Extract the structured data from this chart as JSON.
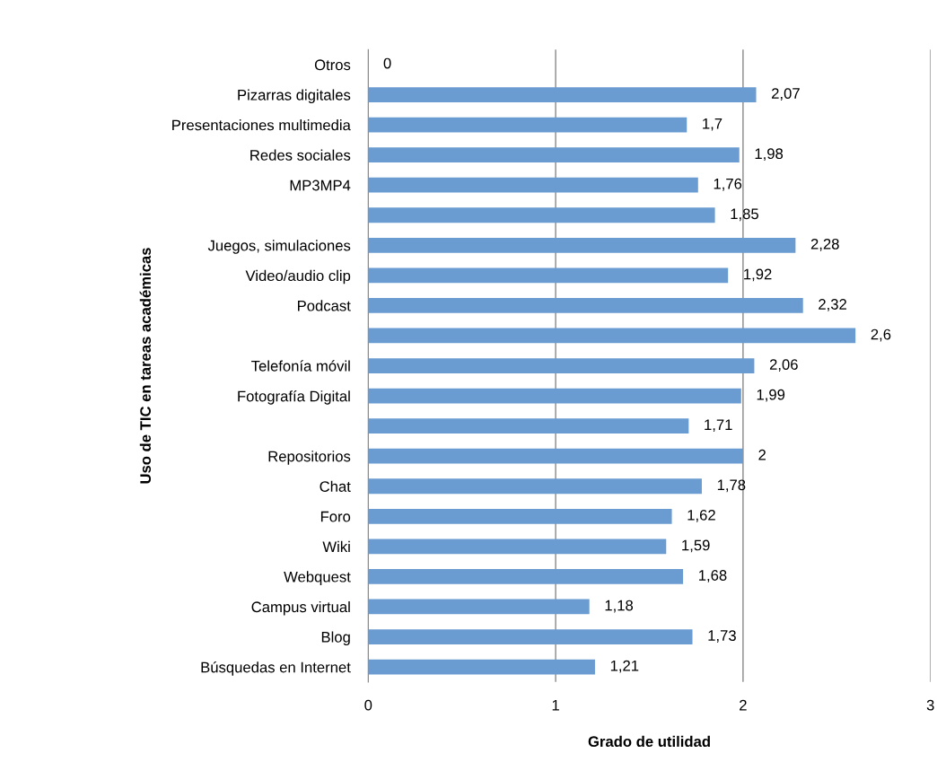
{
  "chart_data": {
    "type": "bar",
    "orientation": "horizontal",
    "xlabel": "Grado de utilidad",
    "ylabel": "Uso de TIC en tareas académicas",
    "categories": [
      "Otros",
      "Pizarras digitales",
      "Presentaciones multimedia",
      "Redes sociales",
      "MP3MP4",
      null,
      "Juegos, simulaciones",
      "Video/audio clip",
      "Podcast",
      null,
      "Telefonía móvil",
      "Fotografía Digital",
      null,
      "Repositorios",
      "Chat",
      "Foro",
      "Wiki",
      "Webquest",
      "Campus virtual",
      "Blog",
      "Búsquedas en Internet"
    ],
    "values": [
      0,
      2.07,
      1.7,
      1.98,
      1.76,
      1.85,
      2.28,
      1.92,
      2.32,
      2.6,
      2.06,
      1.99,
      1.71,
      2,
      1.78,
      1.62,
      1.59,
      1.68,
      1.18,
      1.73,
      1.21
    ],
    "value_labels": [
      "0",
      "2,07",
      "1,7",
      "1,98",
      "1,76",
      "1,85",
      "2,28",
      "1,92",
      "2,32",
      "2,6",
      "2,06",
      "1,99",
      "1,71",
      "2",
      "1,78",
      "1,62",
      "1,59",
      "1,68",
      "1,18",
      "1,73",
      "1,21"
    ],
    "color": "#6a9bd1",
    "xlim": [
      0,
      3
    ],
    "xticks": [
      0,
      1,
      2,
      3
    ],
    "grid": "x"
  }
}
